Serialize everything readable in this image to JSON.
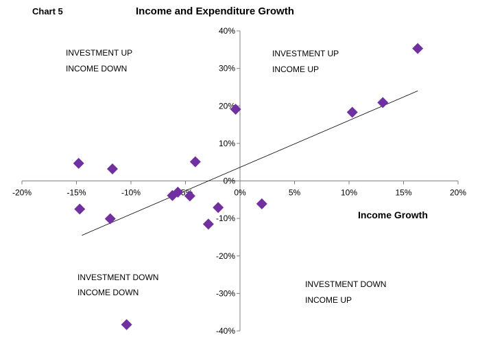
{
  "chart_data": {
    "type": "scatter",
    "chart_label": "Chart 5",
    "title": "Income and Expenditure Growth",
    "xlabel": "Income Growth",
    "ylabel": "",
    "xlim": [
      -20,
      20
    ],
    "ylim": [
      -40,
      40
    ],
    "grid": false,
    "x_ticks": [
      -20,
      -15,
      -10,
      -5,
      0,
      5,
      10,
      15,
      20
    ],
    "y_ticks": [
      -40,
      -30,
      -20,
      -10,
      0,
      10,
      20,
      30,
      40
    ],
    "x_tick_labels": [
      "-20%",
      "-15%",
      "-10%",
      "-5%",
      "0%",
      "5%",
      "10%",
      "15%",
      "20%"
    ],
    "y_tick_labels": [
      "-40%",
      "-30%",
      "-20%",
      "-10%",
      "0%",
      "10%",
      "20%",
      "30%",
      "40%"
    ],
    "marker_color": "#7030A0",
    "trendline_color": "#000000",
    "trendline": {
      "x": [
        -14.5,
        16.3
      ],
      "y": [
        -14.5,
        24.0
      ]
    },
    "points": [
      {
        "x": 16.3,
        "y": 35.3
      },
      {
        "x": 13.1,
        "y": 20.9
      },
      {
        "x": 10.3,
        "y": 18.3
      },
      {
        "x": -0.4,
        "y": 19.1
      },
      {
        "x": 2.0,
        "y": -6.1
      },
      {
        "x": -2.0,
        "y": -7.1
      },
      {
        "x": -2.9,
        "y": -11.5
      },
      {
        "x": -4.1,
        "y": 5.1
      },
      {
        "x": -4.6,
        "y": -4.0
      },
      {
        "x": -5.7,
        "y": -3.0
      },
      {
        "x": -6.2,
        "y": -3.9
      },
      {
        "x": -11.7,
        "y": 3.2
      },
      {
        "x": -14.8,
        "y": 4.7
      },
      {
        "x": -14.7,
        "y": -7.5
      },
      {
        "x": -11.9,
        "y": -10.1
      },
      {
        "x": -10.4,
        "y": -38.3
      }
    ],
    "annotations": [
      {
        "id": "q-top-left",
        "lines": [
          "INVESTMENT UP",
          "INCOME DOWN"
        ]
      },
      {
        "id": "q-top-right",
        "lines": [
          "INVESTMENT UP",
          "INCOME UP"
        ]
      },
      {
        "id": "q-bottom-left",
        "lines": [
          "INVESTMENT DOWN",
          "INCOME DOWN"
        ]
      },
      {
        "id": "q-bottom-right",
        "lines": [
          "INVESTMENT DOWN",
          "INCOME UP"
        ]
      }
    ]
  }
}
